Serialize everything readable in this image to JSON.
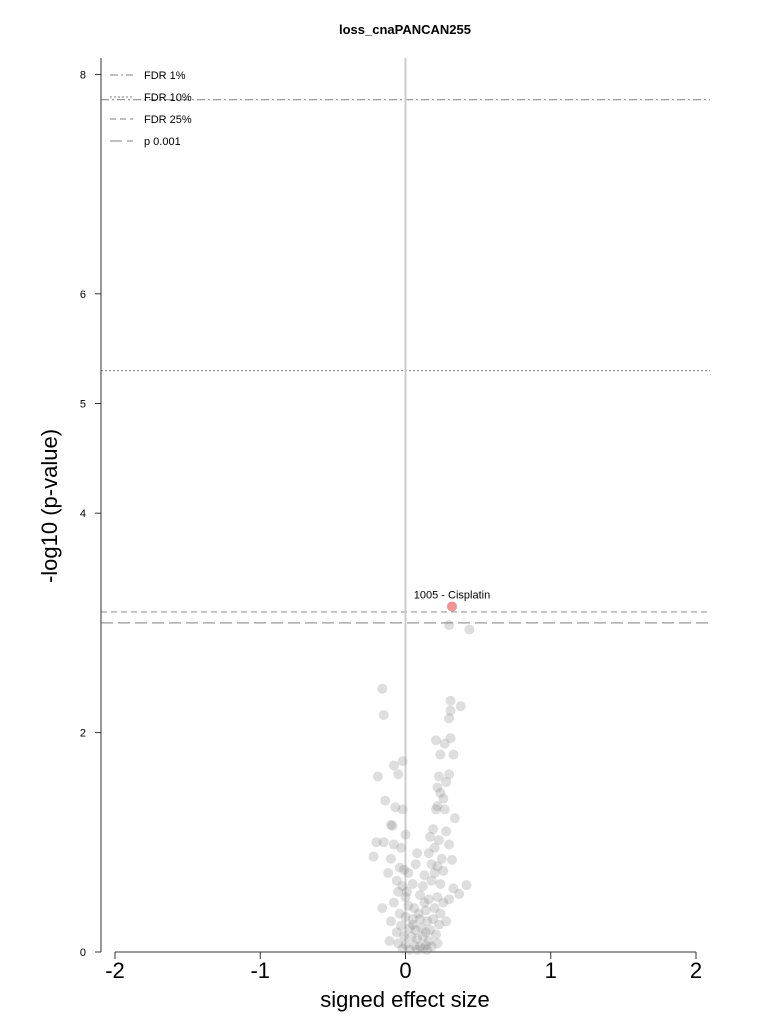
{
  "chart_data": {
    "type": "scatter",
    "title": "loss_cnaPANCAN255",
    "xlabel": "signed effect size",
    "ylabel": "-log10 (p-value)",
    "xlim": [
      -2.1,
      2.1
    ],
    "ylim": [
      0,
      8.1
    ],
    "xticks": [
      "-2",
      "-1",
      "0",
      "1",
      "2"
    ],
    "xtick_values": [
      -2,
      -1,
      0,
      1,
      2
    ],
    "yticks": [
      "0",
      "2",
      "4",
      "5",
      "6",
      "8"
    ],
    "ytick_values": [
      0,
      2,
      4,
      5,
      6,
      8
    ],
    "legend_position": "top-left",
    "legend": [
      {
        "label": "FDR 1%",
        "style": "dashdot"
      },
      {
        "label": "FDR 10%",
        "style": "dotted"
      },
      {
        "label": "FDR 25%",
        "style": "dashed"
      },
      {
        "label": "p 0.001",
        "style": "longdash"
      }
    ],
    "threshold_lines": [
      {
        "label": "FDR 1%",
        "y": 7.77,
        "style": "dashdot"
      },
      {
        "label": "FDR 10%",
        "y": 5.3,
        "style": "dotted"
      },
      {
        "label": "FDR 25%",
        "y": 3.1,
        "style": "dashed"
      },
      {
        "label": "p 0.001",
        "y": 3.0,
        "style": "longdash"
      }
    ],
    "highlight": {
      "label": "1005 - Cisplatin",
      "x": 0.32,
      "y": 3.15,
      "color": "#f08080"
    },
    "point_color": "#888888",
    "points": [
      [
        0.3,
        2.98
      ],
      [
        0.44,
        2.94
      ],
      [
        -0.16,
        2.4
      ],
      [
        -0.15,
        2.16
      ],
      [
        0.31,
        2.29
      ],
      [
        0.38,
        2.24
      ],
      [
        0.31,
        2.2
      ],
      [
        0.3,
        2.13
      ],
      [
        0.21,
        1.93
      ],
      [
        0.27,
        1.9
      ],
      [
        0.31,
        1.95
      ],
      [
        0.24,
        1.8
      ],
      [
        0.33,
        1.8
      ],
      [
        -0.02,
        1.74
      ],
      [
        -0.08,
        1.7
      ],
      [
        -0.19,
        1.6
      ],
      [
        -0.05,
        1.62
      ],
      [
        0.23,
        1.6
      ],
      [
        0.3,
        1.62
      ],
      [
        0.22,
        1.5
      ],
      [
        0.28,
        1.55
      ],
      [
        0.24,
        1.45
      ],
      [
        0.26,
        1.4
      ],
      [
        0.21,
        1.3
      ],
      [
        0.22,
        1.33
      ],
      [
        -0.14,
        1.38
      ],
      [
        -0.07,
        1.32
      ],
      [
        -0.02,
        1.3
      ],
      [
        -0.09,
        1.15
      ],
      [
        -0.1,
        1.16
      ],
      [
        0.34,
        1.22
      ],
      [
        0.28,
        1.1
      ],
      [
        -0.2,
        1.0
      ],
      [
        -0.15,
        1.0
      ],
      [
        -0.08,
        0.98
      ],
      [
        0.0,
        1.07
      ],
      [
        0.17,
        1.05
      ],
      [
        0.23,
        1.02
      ],
      [
        0.2,
        0.95
      ],
      [
        0.3,
        0.98
      ],
      [
        -0.22,
        0.87
      ],
      [
        -0.1,
        0.85
      ],
      [
        0.08,
        0.9
      ],
      [
        0.18,
        0.8
      ],
      [
        0.22,
        0.78
      ],
      [
        0.32,
        0.84
      ],
      [
        0.16,
        0.9
      ],
      [
        -0.04,
        0.77
      ],
      [
        -0.01,
        0.75
      ],
      [
        0.02,
        0.72
      ],
      [
        0.13,
        0.7
      ],
      [
        0.2,
        0.72
      ],
      [
        0.26,
        0.74
      ],
      [
        -0.12,
        0.72
      ],
      [
        -0.06,
        0.65
      ],
      [
        -0.02,
        0.6
      ],
      [
        0.05,
        0.62
      ],
      [
        0.12,
        0.6
      ],
      [
        0.18,
        0.65
      ],
      [
        0.24,
        0.62
      ],
      [
        0.33,
        0.58
      ],
      [
        0.42,
        0.61
      ],
      [
        0.37,
        0.53
      ],
      [
        -0.05,
        0.55
      ],
      [
        0.0,
        0.5
      ],
      [
        0.1,
        0.52
      ],
      [
        0.16,
        0.48
      ],
      [
        0.22,
        0.5
      ],
      [
        0.26,
        0.45
      ],
      [
        0.3,
        0.48
      ],
      [
        -0.08,
        0.45
      ],
      [
        0.02,
        0.42
      ],
      [
        0.06,
        0.4
      ],
      [
        0.14,
        0.38
      ],
      [
        0.2,
        0.4
      ],
      [
        0.24,
        0.35
      ],
      [
        -0.04,
        0.35
      ],
      [
        0.0,
        0.32
      ],
      [
        0.05,
        0.3
      ],
      [
        0.1,
        0.3
      ],
      [
        0.15,
        0.28
      ],
      [
        0.19,
        0.3
      ],
      [
        0.23,
        0.25
      ],
      [
        -0.1,
        0.28
      ],
      [
        -0.03,
        0.24
      ],
      [
        0.03,
        0.22
      ],
      [
        0.07,
        0.2
      ],
      [
        0.11,
        0.22
      ],
      [
        0.14,
        0.18
      ],
      [
        0.17,
        0.2
      ],
      [
        0.21,
        0.16
      ],
      [
        -0.06,
        0.18
      ],
      [
        -0.01,
        0.15
      ],
      [
        0.04,
        0.14
      ],
      [
        0.08,
        0.12
      ],
      [
        0.12,
        0.14
      ],
      [
        0.16,
        0.1
      ],
      [
        -0.11,
        0.1
      ],
      [
        -0.05,
        0.08
      ],
      [
        0.0,
        0.07
      ],
      [
        0.06,
        0.06
      ],
      [
        0.1,
        0.05
      ],
      [
        0.14,
        0.06
      ],
      [
        0.18,
        0.05
      ],
      [
        0.22,
        0.08
      ],
      [
        -0.02,
        0.03
      ],
      [
        0.03,
        0.02
      ],
      [
        0.08,
        0.02
      ],
      [
        0.12,
        0.03
      ],
      [
        0.15,
        0.02
      ],
      [
        0.05,
        0.25
      ],
      [
        0.09,
        0.35
      ],
      [
        0.13,
        0.45
      ],
      [
        0.01,
        0.55
      ],
      [
        -0.03,
        0.95
      ],
      [
        0.27,
        1.3
      ],
      [
        0.25,
        0.85
      ],
      [
        0.19,
        1.12
      ],
      [
        -0.16,
        0.4
      ],
      [
        0.28,
        0.28
      ],
      [
        0.07,
        0.8
      ]
    ]
  }
}
